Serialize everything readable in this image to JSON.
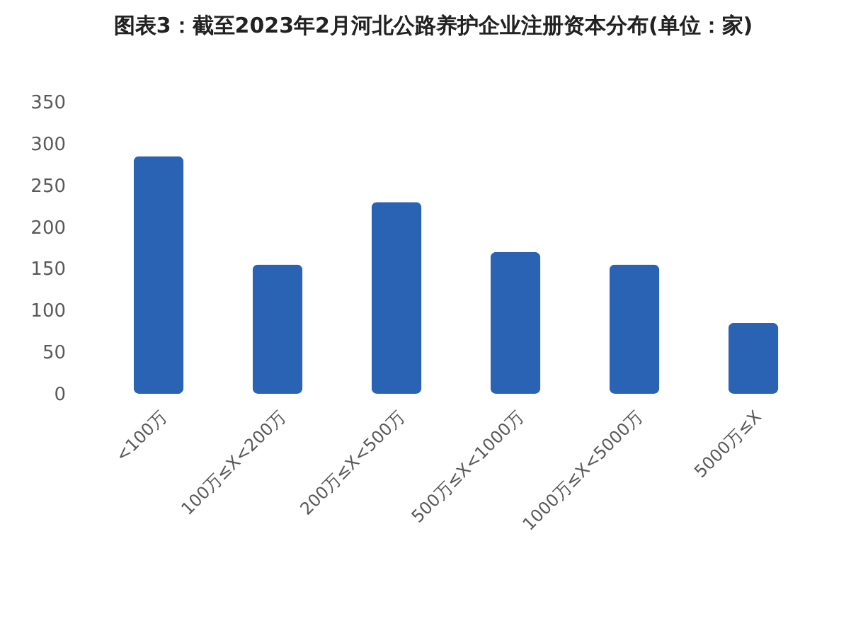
{
  "chart_data": {
    "type": "bar",
    "title": "图表3：截至2023年2月河北公路养护企业注册资本分布(单位：家)",
    "categories": [
      "<100万",
      "100万≤X<200万",
      "200万≤X<500万",
      "500万≤X<1000万",
      "1000万≤X<5000万",
      "5000万≤X"
    ],
    "values": [
      285,
      155,
      230,
      170,
      155,
      85
    ],
    "color": "#2a63b4",
    "ylim": [
      0,
      350
    ],
    "yticks": [
      0,
      50,
      100,
      150,
      200,
      250,
      300,
      350
    ],
    "grid": false
  }
}
